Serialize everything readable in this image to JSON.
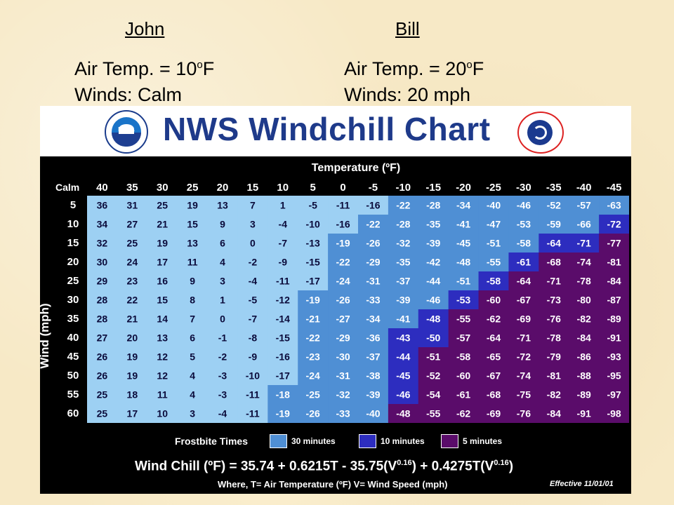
{
  "people": {
    "john": {
      "name": "John",
      "temp_label": "Air Temp.  =  10",
      "temp_sup": "o",
      "temp_unit": "F",
      "winds": "Winds: Calm"
    },
    "bill": {
      "name": "Bill",
      "temp_label": "Air Temp.  =  20",
      "temp_sup": "o",
      "temp_unit": "F",
      "winds": "Winds:  20 mph"
    }
  },
  "chart": {
    "title": "NWS Windchill Chart",
    "noaa_logo_text": "NOAA",
    "colors": {
      "title": "#1e3a8a",
      "band_none": "#9dd0f3",
      "band_30": "#4f8fd4",
      "band_10": "#2d2dbf",
      "band_5": "#5a0c6a",
      "background": "#000000"
    },
    "temp_header": "Temperature (ºF)",
    "calm_label": "Calm",
    "wind_axis_label": "Wind (mph)",
    "frostbite_label": "Frostbite Times",
    "legend": [
      {
        "label": "30 minutes",
        "color": "#4f8fd4"
      },
      {
        "label": "10 minutes",
        "color": "#2d2dbf"
      },
      {
        "label": "5 minutes",
        "color": "#5a0c6a"
      }
    ],
    "formula": "Wind Chill (ºF) = 35.74 + 0.6215T - 35.75(V",
    "formula_exp1": "0.16",
    "formula_mid": ") + 0.4275T(V",
    "formula_exp2": "0.16",
    "formula_end": ")",
    "where_text": "Where, T= Air Temperature (ºF)  V= Wind Speed (mph)",
    "effective": "Effective 11/01/01"
  },
  "chart_data": {
    "type": "table",
    "temperatures": [
      "40",
      "35",
      "30",
      "25",
      "20",
      "15",
      "10",
      "5",
      "0",
      "-5",
      "-10",
      "-15",
      "-20",
      "-25",
      "-30",
      "-35",
      "-40",
      "-45"
    ],
    "winds": [
      "5",
      "10",
      "15",
      "20",
      "25",
      "30",
      "35",
      "40",
      "45",
      "50",
      "55",
      "60"
    ],
    "values": [
      [
        "36",
        "31",
        "25",
        "19",
        "13",
        "7",
        "1",
        "-5",
        "-11",
        "-16",
        "-22",
        "-28",
        "-34",
        "-40",
        "-46",
        "-52",
        "-57",
        "-63"
      ],
      [
        "34",
        "27",
        "21",
        "15",
        "9",
        "3",
        "-4",
        "-10",
        "-16",
        "-22",
        "-28",
        "-35",
        "-41",
        "-47",
        "-53",
        "-59",
        "-66",
        "-72"
      ],
      [
        "32",
        "25",
        "19",
        "13",
        "6",
        "0",
        "-7",
        "-13",
        "-19",
        "-26",
        "-32",
        "-39",
        "-45",
        "-51",
        "-58",
        "-64",
        "-71",
        "-77"
      ],
      [
        "30",
        "24",
        "17",
        "11",
        "4",
        "-2",
        "-9",
        "-15",
        "-22",
        "-29",
        "-35",
        "-42",
        "-48",
        "-55",
        "-61",
        "-68",
        "-74",
        "-81"
      ],
      [
        "29",
        "23",
        "16",
        "9",
        "3",
        "-4",
        "-11",
        "-17",
        "-24",
        "-31",
        "-37",
        "-44",
        "-51",
        "-58",
        "-64",
        "-71",
        "-78",
        "-84"
      ],
      [
        "28",
        "22",
        "15",
        "8",
        "1",
        "-5",
        "-12",
        "-19",
        "-26",
        "-33",
        "-39",
        "-46",
        "-53",
        "-60",
        "-67",
        "-73",
        "-80",
        "-87"
      ],
      [
        "28",
        "21",
        "14",
        "7",
        "0",
        "-7",
        "-14",
        "-21",
        "-27",
        "-34",
        "-41",
        "-48",
        "-55",
        "-62",
        "-69",
        "-76",
        "-82",
        "-89"
      ],
      [
        "27",
        "20",
        "13",
        "6",
        "-1",
        "-8",
        "-15",
        "-22",
        "-29",
        "-36",
        "-43",
        "-50",
        "-57",
        "-64",
        "-71",
        "-78",
        "-84",
        "-91"
      ],
      [
        "26",
        "19",
        "12",
        "5",
        "-2",
        "-9",
        "-16",
        "-23",
        "-30",
        "-37",
        "-44",
        "-51",
        "-58",
        "-65",
        "-72",
        "-79",
        "-86",
        "-93"
      ],
      [
        "26",
        "19",
        "12",
        "4",
        "-3",
        "-10",
        "-17",
        "-24",
        "-31",
        "-38",
        "-45",
        "-52",
        "-60",
        "-67",
        "-74",
        "-81",
        "-88",
        "-95"
      ],
      [
        "25",
        "18",
        "11",
        "4",
        "-3",
        "-11",
        "-18",
        "-25",
        "-32",
        "-39",
        "-46",
        "-54",
        "-61",
        "-68",
        "-75",
        "-82",
        "-89",
        "-97"
      ],
      [
        "25",
        "17",
        "10",
        "3",
        "-4",
        "-11",
        "-19",
        "-26",
        "-33",
        "-40",
        "-48",
        "-55",
        "-62",
        "-69",
        "-76",
        "-84",
        "-91",
        "-98"
      ]
    ],
    "frostbite_bands": [
      [
        0,
        0,
        0,
        0,
        0,
        0,
        0,
        0,
        0,
        0,
        1,
        1,
        1,
        1,
        1,
        1,
        1,
        1
      ],
      [
        0,
        0,
        0,
        0,
        0,
        0,
        0,
        0,
        0,
        1,
        1,
        1,
        1,
        1,
        1,
        1,
        1,
        2
      ],
      [
        0,
        0,
        0,
        0,
        0,
        0,
        0,
        0,
        1,
        1,
        1,
        1,
        1,
        1,
        1,
        2,
        2,
        3
      ],
      [
        0,
        0,
        0,
        0,
        0,
        0,
        0,
        0,
        1,
        1,
        1,
        1,
        1,
        1,
        2,
        3,
        3,
        3
      ],
      [
        0,
        0,
        0,
        0,
        0,
        0,
        0,
        0,
        1,
        1,
        1,
        1,
        1,
        2,
        3,
        3,
        3,
        3
      ],
      [
        0,
        0,
        0,
        0,
        0,
        0,
        0,
        1,
        1,
        1,
        1,
        1,
        2,
        3,
        3,
        3,
        3,
        3
      ],
      [
        0,
        0,
        0,
        0,
        0,
        0,
        0,
        1,
        1,
        1,
        1,
        2,
        3,
        3,
        3,
        3,
        3,
        3
      ],
      [
        0,
        0,
        0,
        0,
        0,
        0,
        0,
        1,
        1,
        1,
        2,
        2,
        3,
        3,
        3,
        3,
        3,
        3
      ],
      [
        0,
        0,
        0,
        0,
        0,
        0,
        0,
        1,
        1,
        1,
        2,
        3,
        3,
        3,
        3,
        3,
        3,
        3
      ],
      [
        0,
        0,
        0,
        0,
        0,
        0,
        0,
        1,
        1,
        1,
        2,
        3,
        3,
        3,
        3,
        3,
        3,
        3
      ],
      [
        0,
        0,
        0,
        0,
        0,
        0,
        1,
        1,
        1,
        1,
        2,
        3,
        3,
        3,
        3,
        3,
        3,
        3
      ],
      [
        0,
        0,
        0,
        0,
        0,
        0,
        1,
        1,
        1,
        1,
        3,
        3,
        3,
        3,
        3,
        3,
        3,
        3
      ]
    ]
  }
}
